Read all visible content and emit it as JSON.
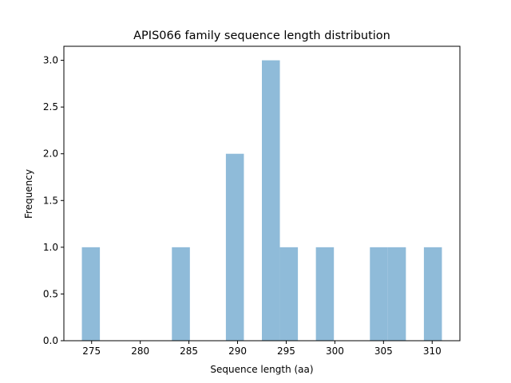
{
  "chart_data": {
    "type": "bar",
    "title": "APIS066 family sequence length distribution",
    "xlabel": "Sequence length (aa)",
    "ylabel": "Frequency",
    "bin_edges_start": 274,
    "bin_width": 1.85,
    "counts": [
      1,
      0,
      0,
      0,
      0,
      1,
      0,
      0,
      2,
      0,
      3,
      1,
      0,
      1,
      0,
      0,
      1,
      1,
      0,
      1
    ],
    "xlim": [
      272.15,
      312.85
    ],
    "ylim": [
      0,
      3.15
    ],
    "xticks": [
      275,
      280,
      285,
      290,
      295,
      300,
      305,
      310
    ],
    "xtick_labels": [
      "275",
      "280",
      "285",
      "290",
      "295",
      "300",
      "305",
      "310"
    ],
    "yticks": [
      0,
      0.5,
      1.0,
      1.5,
      2.0,
      2.5,
      3.0
    ],
    "ytick_labels": [
      "0.0",
      "0.5",
      "1.0",
      "1.5",
      "2.0",
      "2.5",
      "3.0"
    ],
    "grid": false,
    "bar_color": "#8fbbd9"
  }
}
